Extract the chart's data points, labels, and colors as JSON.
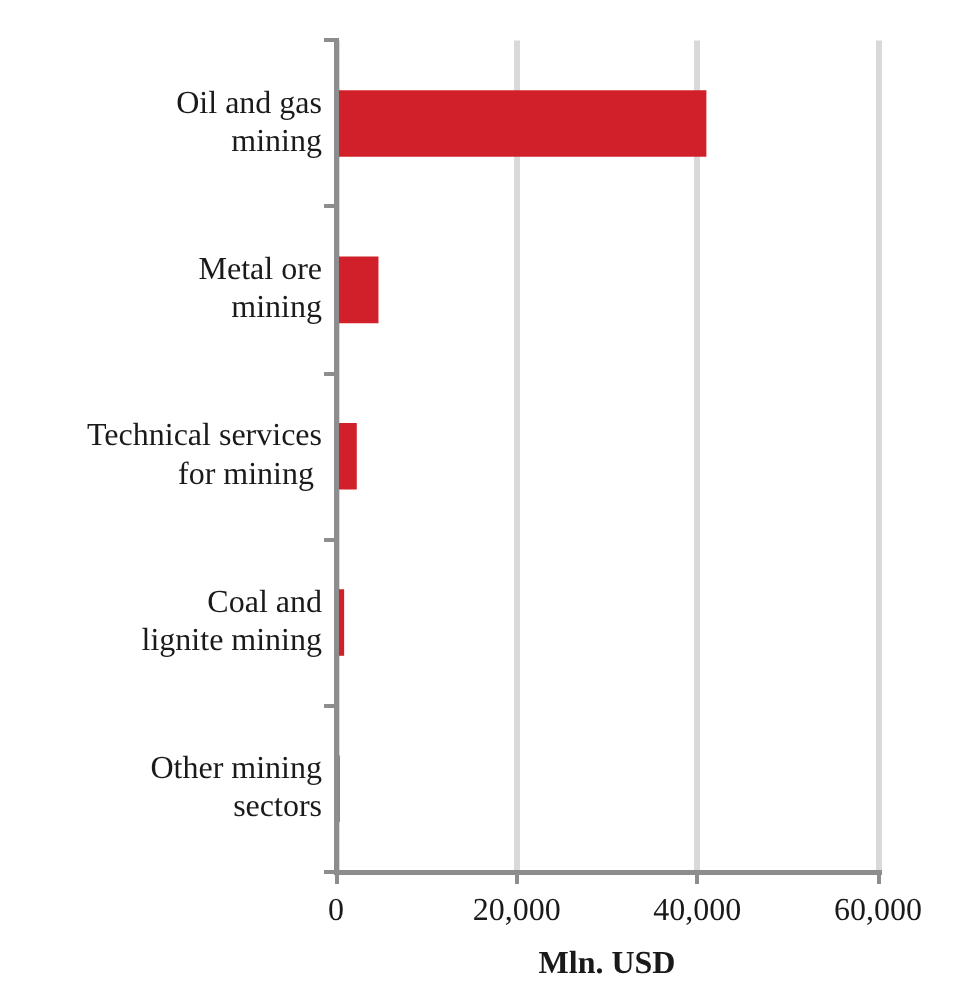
{
  "chart_data": {
    "type": "bar",
    "orientation": "horizontal",
    "categories": [
      "Oil and gas\nmining",
      "Metal ore\nmining",
      "Technical services\nfor mining ",
      "Coal and\nlignite mining",
      "Other mining\nsectors"
    ],
    "values": [
      41000,
      4700,
      2300,
      900,
      400
    ],
    "color": "#d2202a",
    "xlim": [
      0,
      60000
    ],
    "xticks": [
      0,
      {
        "value": 20000,
        "label": "20,000"
      },
      {
        "value": 40000,
        "label": "40,000"
      },
      {
        "value": 60000,
        "label": "60,000"
      }
    ],
    "xlabel": "Mln. USD",
    "grid": "x"
  }
}
